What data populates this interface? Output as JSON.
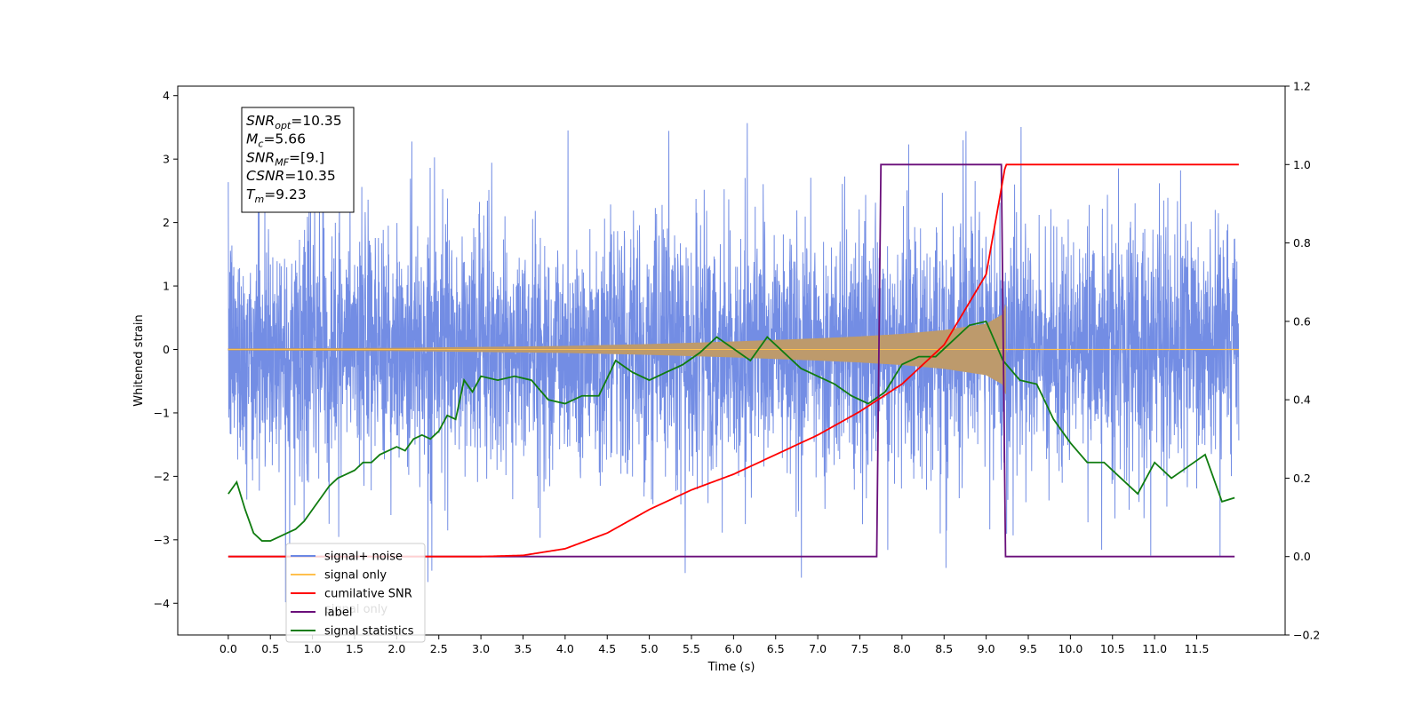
{
  "chart_data": {
    "type": "line",
    "xlabel": "Time (s)",
    "ylabel": "Whitened strain",
    "xlim": [
      -0.6,
      12.55
    ],
    "ylim_left": [
      -4.5,
      4.15
    ],
    "ylim_right": [
      -0.2,
      1.2
    ],
    "x_ticks": [
      "0.0",
      "0.5",
      "1.0",
      "1.5",
      "2.0",
      "2.5",
      "3.0",
      "3.5",
      "4.0",
      "4.5",
      "5.0",
      "5.5",
      "6.0",
      "6.5",
      "7.0",
      "7.5",
      "8.0",
      "8.5",
      "9.0",
      "9.5",
      "10.0",
      "10.5",
      "11.0",
      "11.5"
    ],
    "x_tick_values": [
      0,
      0.5,
      1,
      1.5,
      2,
      2.5,
      3,
      3.5,
      4,
      4.5,
      5,
      5.5,
      6,
      6.5,
      7,
      7.5,
      8,
      8.5,
      9,
      9.5,
      10,
      10.5,
      11,
      11.5
    ],
    "y_ticks_left": [
      "4",
      "3",
      "2",
      "1",
      "0",
      "−1",
      "−2",
      "−3",
      "−4"
    ],
    "y_tick_values_left": [
      4,
      3,
      2,
      1,
      0,
      -1,
      -2,
      -3,
      -4
    ],
    "y_ticks_right": [
      "1.2",
      "1.0",
      "0.8",
      "0.6",
      "0.4",
      "0.2",
      "0.0",
      "−0.2"
    ],
    "y_tick_values_right": [
      1.2,
      1.0,
      0.8,
      0.6,
      0.4,
      0.2,
      0.0,
      -0.2
    ],
    "annotation": {
      "lines": [
        {
          "base": "SNR",
          "sub": "opt",
          "rest": "=10.35"
        },
        {
          "base": "M",
          "sub": "c",
          "rest": "=5.66"
        },
        {
          "base": "SNR",
          "sub": "MF",
          "rest": "=[9.]"
        },
        {
          "base": "CSNR",
          "sub": "",
          "rest": "=10.35"
        },
        {
          "base": "T",
          "sub": "m",
          "rest": "=9.23"
        }
      ]
    },
    "legend": {
      "position": "lower-left",
      "entries": [
        {
          "label": "signal+ noise",
          "color": "#6b87e3"
        },
        {
          "label": "signal only",
          "color": "#ffc04d"
        },
        {
          "label": "cumilative SNR",
          "color": "#ff0000"
        },
        {
          "label": "label",
          "color": "#6a0f7a"
        },
        {
          "label": "signal statistics",
          "color": "#107c10"
        }
      ],
      "ghost_text": "signal only"
    },
    "series": [
      {
        "name": "signal+ noise",
        "axis": "left",
        "color": "#6b87e3",
        "x_range": [
          0,
          12.0
        ],
        "band": [
          -1.6,
          1.6
        ],
        "spike_max": 3.75,
        "spike_min": -4.1
      },
      {
        "name": "signal only",
        "axis": "left",
        "color": "#ffc04d",
        "envelope_color": "#bd9a6c",
        "x": [
          0,
          2,
          4,
          5,
          6,
          7,
          7.5,
          8,
          8.5,
          9,
          9.2,
          9.23
        ],
        "envelope": [
          0.01,
          0.02,
          0.05,
          0.08,
          0.12,
          0.17,
          0.2,
          0.24,
          0.3,
          0.4,
          0.55,
          0.7
        ]
      },
      {
        "name": "cumilative SNR",
        "axis": "right",
        "color": "#ff0000",
        "x": [
          0,
          3.0,
          3.5,
          4.0,
          4.5,
          5.0,
          5.5,
          6.0,
          6.5,
          7.0,
          7.5,
          8.0,
          8.5,
          9.0,
          9.23,
          12.0
        ],
        "values": [
          0.0,
          0.0,
          0.003,
          0.02,
          0.06,
          0.12,
          0.17,
          0.21,
          0.26,
          0.31,
          0.37,
          0.44,
          0.54,
          0.72,
          1.0,
          1.0
        ]
      },
      {
        "name": "label",
        "axis": "right",
        "color": "#6a0f7a",
        "x": [
          0,
          7.7,
          7.75,
          9.18,
          9.23,
          11.95
        ],
        "values": [
          0,
          0,
          1,
          1,
          0,
          0
        ]
      },
      {
        "name": "signal statistics",
        "axis": "right",
        "color": "#107c10",
        "x": [
          0,
          0.1,
          0.2,
          0.3,
          0.4,
          0.5,
          0.6,
          0.7,
          0.8,
          0.9,
          1.0,
          1.1,
          1.2,
          1.3,
          1.4,
          1.5,
          1.6,
          1.7,
          1.8,
          1.9,
          2.0,
          2.1,
          2.2,
          2.3,
          2.4,
          2.5,
          2.6,
          2.7,
          2.8,
          2.9,
          3.0,
          3.2,
          3.4,
          3.6,
          3.8,
          4.0,
          4.2,
          4.4,
          4.6,
          4.8,
          5.0,
          5.2,
          5.4,
          5.6,
          5.8,
          6.0,
          6.2,
          6.4,
          6.6,
          6.8,
          7.0,
          7.2,
          7.4,
          7.6,
          7.8,
          8.0,
          8.2,
          8.4,
          8.6,
          8.8,
          9.0,
          9.2,
          9.4,
          9.6,
          9.8,
          10.0,
          10.2,
          10.4,
          10.6,
          10.8,
          11.0,
          11.2,
          11.4,
          11.6,
          11.8,
          11.95
        ],
        "values": [
          0.16,
          0.19,
          0.12,
          0.06,
          0.04,
          0.04,
          0.05,
          0.06,
          0.07,
          0.09,
          0.12,
          0.15,
          0.18,
          0.2,
          0.21,
          0.22,
          0.24,
          0.24,
          0.26,
          0.27,
          0.28,
          0.27,
          0.3,
          0.31,
          0.3,
          0.32,
          0.36,
          0.35,
          0.45,
          0.42,
          0.46,
          0.45,
          0.46,
          0.45,
          0.4,
          0.39,
          0.41,
          0.41,
          0.5,
          0.47,
          0.45,
          0.47,
          0.49,
          0.52,
          0.56,
          0.53,
          0.5,
          0.56,
          0.52,
          0.48,
          0.46,
          0.44,
          0.41,
          0.39,
          0.42,
          0.49,
          0.51,
          0.51,
          0.55,
          0.59,
          0.6,
          0.5,
          0.45,
          0.44,
          0.35,
          0.29,
          0.24,
          0.24,
          0.2,
          0.16,
          0.24,
          0.2,
          0.23,
          0.26,
          0.14,
          0.15
        ]
      }
    ]
  }
}
